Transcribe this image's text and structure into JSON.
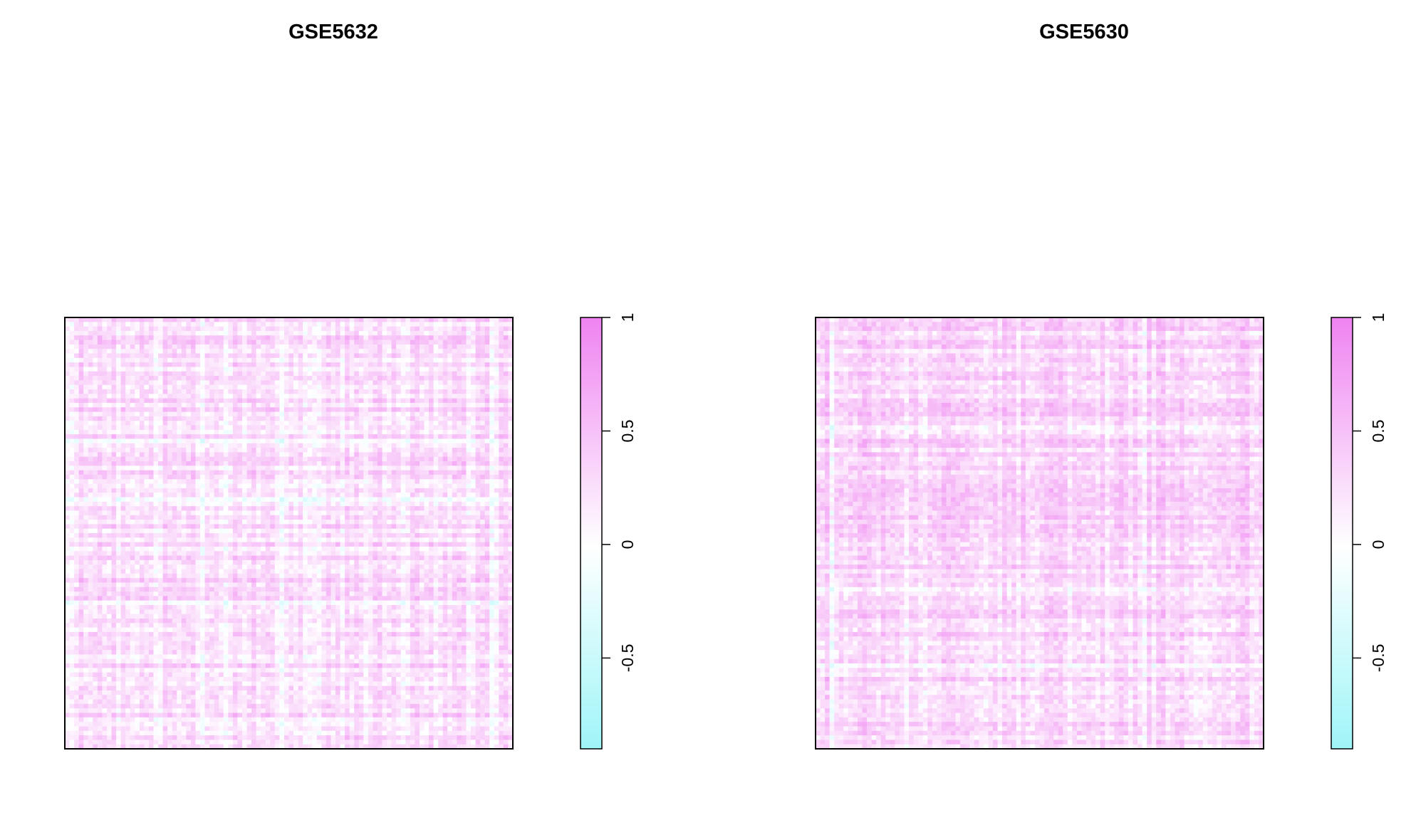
{
  "chart_data": [
    {
      "type": "heatmap",
      "title": "GSE5632",
      "xlabel": "",
      "ylabel": "",
      "matrix": "correlation",
      "grid": false,
      "color_scale": {
        "min": -0.9,
        "max": 1,
        "low_color": "#9ff5f8",
        "mid_color": "#ffffff",
        "high_color": "#ef83f1",
        "ticks": [
          -0.5,
          0,
          0.5,
          1
        ],
        "tick_labels": [
          "-0.5",
          "0",
          "0.5",
          "1"
        ]
      },
      "value_range_observed": [
        -0.5,
        0.8
      ],
      "typical_value": 0.25
    },
    {
      "type": "heatmap",
      "title": "GSE5630",
      "xlabel": "",
      "ylabel": "",
      "matrix": "correlation",
      "grid": false,
      "color_scale": {
        "min": -0.9,
        "max": 1,
        "low_color": "#9ff5f8",
        "mid_color": "#ffffff",
        "high_color": "#ef83f1",
        "ticks": [
          -0.5,
          0,
          0.5,
          1
        ],
        "tick_labels": [
          "-0.5",
          "0",
          "0.5",
          "1"
        ]
      },
      "value_range_observed": [
        -0.5,
        0.8
      ],
      "typical_value": 0.32
    }
  ]
}
